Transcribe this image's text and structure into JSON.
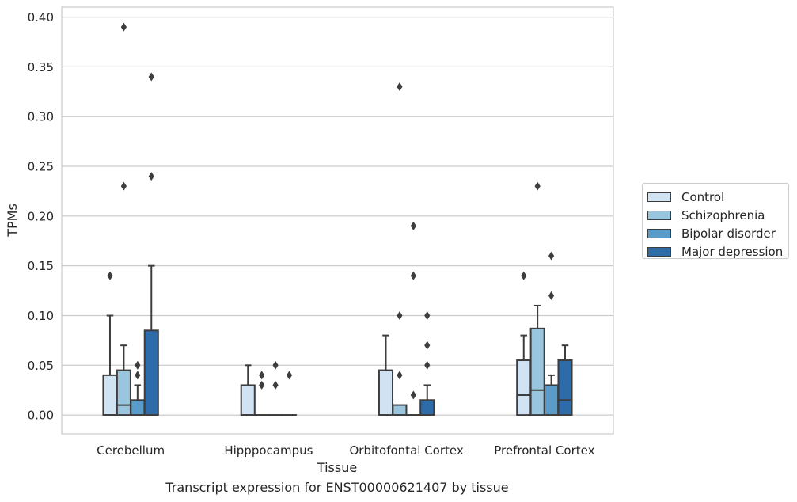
{
  "caption": "Transcript expression for ENST00000621407 by tissue",
  "chart_data": {
    "type": "box",
    "xlabel": "Tissue",
    "ylabel": "TPMs",
    "ylim": [
      -0.019,
      0.41
    ],
    "yticks": [
      0.0,
      0.05,
      0.1,
      0.15,
      0.2,
      0.25,
      0.3,
      0.35,
      0.4
    ],
    "ytick_labels": [
      "0.00",
      "0.05",
      "0.10",
      "0.15",
      "0.20",
      "0.25",
      "0.30",
      "0.35",
      "0.40"
    ],
    "grid": "horizontal",
    "legend_position": "right",
    "categories": [
      "Cerebellum",
      "Hipppocampus",
      "Orbitofontal Cortex",
      "Prefrontal Cortex"
    ],
    "series": [
      {
        "name": "Control",
        "color": "#d1e2f2",
        "boxes": [
          {
            "q1": 0.0,
            "median": 0.0,
            "q3": 0.04,
            "whisker_low": 0.0,
            "whisker_high": 0.1,
            "outliers": [
              0.14
            ]
          },
          {
            "q1": 0.0,
            "median": 0.0,
            "q3": 0.03,
            "whisker_low": 0.0,
            "whisker_high": 0.05,
            "outliers": []
          },
          {
            "q1": 0.0,
            "median": 0.0,
            "q3": 0.045,
            "whisker_low": 0.0,
            "whisker_high": 0.08,
            "outliers": []
          },
          {
            "q1": 0.0,
            "median": 0.02,
            "q3": 0.055,
            "whisker_low": 0.0,
            "whisker_high": 0.08,
            "outliers": [
              0.14
            ]
          }
        ]
      },
      {
        "name": "Schizophrenia",
        "color": "#9ac5de",
        "boxes": [
          {
            "q1": 0.0,
            "median": 0.01,
            "q3": 0.045,
            "whisker_low": 0.0,
            "whisker_high": 0.07,
            "outliers": [
              0.23,
              0.39
            ]
          },
          {
            "q1": 0.0,
            "median": 0.0,
            "q3": 0.0,
            "whisker_low": 0.0,
            "whisker_high": 0.0,
            "outliers": [
              0.03,
              0.04
            ]
          },
          {
            "q1": 0.0,
            "median": 0.0,
            "q3": 0.01,
            "whisker_low": 0.0,
            "whisker_high": 0.01,
            "outliers": [
              0.04,
              0.1,
              0.33
            ]
          },
          {
            "q1": 0.0,
            "median": 0.025,
            "q3": 0.087,
            "whisker_low": 0.0,
            "whisker_high": 0.11,
            "outliers": [
              0.23
            ]
          }
        ]
      },
      {
        "name": "Bipolar disorder",
        "color": "#5a9cc9",
        "boxes": [
          {
            "q1": 0.0,
            "median": 0.0,
            "q3": 0.015,
            "whisker_low": 0.0,
            "whisker_high": 0.03,
            "outliers": [
              0.04,
              0.05
            ]
          },
          {
            "q1": 0.0,
            "median": 0.0,
            "q3": 0.0,
            "whisker_low": 0.0,
            "whisker_high": 0.0,
            "outliers": [
              0.03,
              0.05
            ]
          },
          {
            "q1": 0.0,
            "median": 0.0,
            "q3": 0.0,
            "whisker_low": 0.0,
            "whisker_high": 0.0,
            "outliers": [
              0.02,
              0.14,
              0.19
            ]
          },
          {
            "q1": 0.0,
            "median": 0.0,
            "q3": 0.03,
            "whisker_low": 0.0,
            "whisker_high": 0.04,
            "outliers": [
              0.12,
              0.16
            ]
          }
        ]
      },
      {
        "name": "Major depression",
        "color": "#2e6ba9",
        "boxes": [
          {
            "q1": 0.0,
            "median": 0.0,
            "q3": 0.085,
            "whisker_low": 0.0,
            "whisker_high": 0.15,
            "outliers": [
              0.24,
              0.34
            ]
          },
          {
            "q1": 0.0,
            "median": 0.0,
            "q3": 0.0,
            "whisker_low": 0.0,
            "whisker_high": 0.0,
            "outliers": [
              0.04
            ]
          },
          {
            "q1": 0.0,
            "median": 0.0,
            "q3": 0.015,
            "whisker_low": 0.0,
            "whisker_high": 0.03,
            "outliers": [
              0.05,
              0.07,
              0.1
            ]
          },
          {
            "q1": 0.0,
            "median": 0.015,
            "q3": 0.055,
            "whisker_low": 0.0,
            "whisker_high": 0.07,
            "outliers": []
          }
        ]
      }
    ]
  }
}
